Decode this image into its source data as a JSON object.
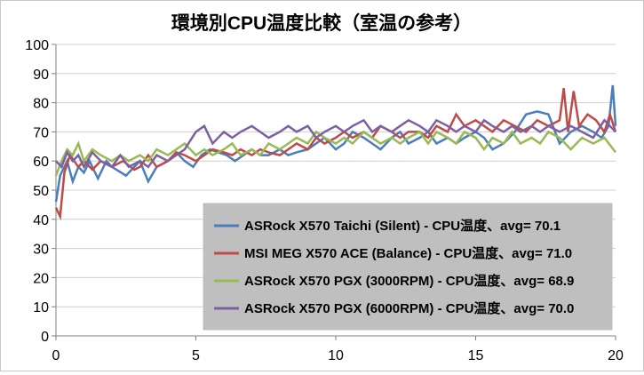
{
  "chart_data": {
    "type": "line",
    "title": "環境別CPU温度比較（室温の参考）",
    "xlabel": "",
    "ylabel": "",
    "xlim": [
      0,
      20
    ],
    "ylim": [
      0,
      100
    ],
    "x_ticks": [
      0,
      5,
      10,
      15,
      20
    ],
    "y_ticks": [
      0,
      10,
      20,
      30,
      40,
      50,
      60,
      70,
      80,
      90,
      100
    ],
    "grid": "horizontal",
    "legend_position": "bottom-right",
    "series": [
      {
        "name": "ASRock X570 Taichi (Silent) - CPU温度、avg= 70.1",
        "color": "#4a7ebb",
        "points": [
          [
            0,
            46
          ],
          [
            0.15,
            55
          ],
          [
            0.4,
            60
          ],
          [
            0.6,
            53
          ],
          [
            0.8,
            58
          ],
          [
            1.0,
            56
          ],
          [
            1.2,
            60
          ],
          [
            1.5,
            54
          ],
          [
            1.8,
            60
          ],
          [
            2.0,
            58
          ],
          [
            2.5,
            55
          ],
          [
            2.8,
            58
          ],
          [
            3.0,
            60
          ],
          [
            3.3,
            53
          ],
          [
            3.6,
            58
          ],
          [
            4.0,
            60
          ],
          [
            4.3,
            63
          ],
          [
            4.6,
            60
          ],
          [
            4.9,
            58
          ],
          [
            5.2,
            62
          ],
          [
            5.5,
            64
          ],
          [
            5.8,
            63
          ],
          [
            6.1,
            62
          ],
          [
            6.4,
            60
          ],
          [
            6.7,
            62
          ],
          [
            7.0,
            64
          ],
          [
            7.3,
            62
          ],
          [
            7.6,
            62
          ],
          [
            8.0,
            64
          ],
          [
            8.3,
            62
          ],
          [
            8.6,
            63
          ],
          [
            9.0,
            64
          ],
          [
            9.3,
            66
          ],
          [
            9.6,
            68
          ],
          [
            10.0,
            64
          ],
          [
            10.3,
            66
          ],
          [
            10.6,
            70
          ],
          [
            11.0,
            68
          ],
          [
            11.3,
            66
          ],
          [
            11.6,
            64
          ],
          [
            12.0,
            68
          ],
          [
            12.3,
            70
          ],
          [
            12.6,
            66
          ],
          [
            13.0,
            68
          ],
          [
            13.3,
            70
          ],
          [
            13.6,
            66
          ],
          [
            14.0,
            68
          ],
          [
            14.3,
            66
          ],
          [
            14.6,
            68
          ],
          [
            15.0,
            70
          ],
          [
            15.3,
            68
          ],
          [
            15.6,
            64
          ],
          [
            16.0,
            66
          ],
          [
            16.4,
            70
          ],
          [
            16.8,
            76
          ],
          [
            17.2,
            77
          ],
          [
            17.6,
            76
          ],
          [
            18.0,
            66
          ],
          [
            18.4,
            70
          ],
          [
            18.8,
            72
          ],
          [
            19.2,
            70
          ],
          [
            19.5,
            68
          ],
          [
            19.75,
            72
          ],
          [
            19.9,
            86
          ],
          [
            20.0,
            72
          ]
        ]
      },
      {
        "name": "MSI MEG X570 ACE (Balance) - CPU温度、avg= 71.0",
        "color": "#be4b48",
        "points": [
          [
            0,
            44
          ],
          [
            0.15,
            41
          ],
          [
            0.3,
            56
          ],
          [
            0.5,
            62
          ],
          [
            0.8,
            58
          ],
          [
            1.0,
            60
          ],
          [
            1.3,
            57
          ],
          [
            1.6,
            60
          ],
          [
            2.0,
            58
          ],
          [
            2.4,
            60
          ],
          [
            2.8,
            57
          ],
          [
            3.0,
            58
          ],
          [
            3.3,
            62
          ],
          [
            3.6,
            58
          ],
          [
            4.0,
            60
          ],
          [
            4.3,
            63
          ],
          [
            4.6,
            62
          ],
          [
            5.0,
            60
          ],
          [
            5.3,
            62
          ],
          [
            5.6,
            64
          ],
          [
            6.0,
            63
          ],
          [
            6.3,
            62
          ],
          [
            6.6,
            64
          ],
          [
            7.0,
            62
          ],
          [
            7.3,
            64
          ],
          [
            7.6,
            63
          ],
          [
            8.0,
            62
          ],
          [
            8.3,
            64
          ],
          [
            8.6,
            66
          ],
          [
            9.0,
            64
          ],
          [
            9.3,
            68
          ],
          [
            9.6,
            66
          ],
          [
            10.0,
            68
          ],
          [
            10.3,
            70
          ],
          [
            10.6,
            68
          ],
          [
            11.0,
            70
          ],
          [
            11.3,
            68
          ],
          [
            11.6,
            72
          ],
          [
            12.0,
            70
          ],
          [
            12.3,
            68
          ],
          [
            12.6,
            70
          ],
          [
            13.0,
            70
          ],
          [
            13.3,
            68
          ],
          [
            13.6,
            72
          ],
          [
            14.0,
            70
          ],
          [
            14.3,
            76
          ],
          [
            14.6,
            72
          ],
          [
            15.0,
            74
          ],
          [
            15.3,
            72
          ],
          [
            15.6,
            70
          ],
          [
            16.0,
            74
          ],
          [
            16.4,
            72
          ],
          [
            16.8,
            70
          ],
          [
            17.2,
            74
          ],
          [
            17.6,
            72
          ],
          [
            18.0,
            74
          ],
          [
            18.15,
            85
          ],
          [
            18.3,
            70
          ],
          [
            18.5,
            84
          ],
          [
            18.7,
            72
          ],
          [
            19.0,
            76
          ],
          [
            19.3,
            74
          ],
          [
            19.6,
            70
          ],
          [
            19.8,
            76
          ],
          [
            20.0,
            70
          ]
        ]
      },
      {
        "name": "ASRock X570 PGX (3000RPM) - CPU温度、avg= 68.9",
        "color": "#98b954",
        "points": [
          [
            0,
            55
          ],
          [
            0.2,
            60
          ],
          [
            0.4,
            64
          ],
          [
            0.6,
            62
          ],
          [
            0.8,
            66
          ],
          [
            1.0,
            60
          ],
          [
            1.3,
            64
          ],
          [
            1.6,
            62
          ],
          [
            2.0,
            60
          ],
          [
            2.3,
            62
          ],
          [
            2.6,
            60
          ],
          [
            3.0,
            62
          ],
          [
            3.3,
            60
          ],
          [
            3.6,
            64
          ],
          [
            4.0,
            62
          ],
          [
            4.3,
            64
          ],
          [
            4.6,
            66
          ],
          [
            5.0,
            62
          ],
          [
            5.3,
            64
          ],
          [
            5.6,
            62
          ],
          [
            6.0,
            64
          ],
          [
            6.3,
            66
          ],
          [
            6.6,
            62
          ],
          [
            7.0,
            64
          ],
          [
            7.3,
            62
          ],
          [
            7.6,
            66
          ],
          [
            8.0,
            64
          ],
          [
            8.3,
            66
          ],
          [
            8.6,
            68
          ],
          [
            9.0,
            66
          ],
          [
            9.3,
            70
          ],
          [
            9.6,
            68
          ],
          [
            10.0,
            66
          ],
          [
            10.3,
            68
          ],
          [
            10.6,
            66
          ],
          [
            11.0,
            70
          ],
          [
            11.3,
            68
          ],
          [
            11.6,
            66
          ],
          [
            12.0,
            68
          ],
          [
            12.3,
            66
          ],
          [
            12.6,
            68
          ],
          [
            13.0,
            70
          ],
          [
            13.3,
            66
          ],
          [
            13.6,
            70
          ],
          [
            14.0,
            68
          ],
          [
            14.3,
            66
          ],
          [
            14.6,
            70
          ],
          [
            15.0,
            68
          ],
          [
            15.3,
            64
          ],
          [
            15.6,
            68
          ],
          [
            16.0,
            66
          ],
          [
            16.3,
            70
          ],
          [
            16.6,
            66
          ],
          [
            17.0,
            68
          ],
          [
            17.3,
            66
          ],
          [
            17.6,
            70
          ],
          [
            18.0,
            68
          ],
          [
            18.4,
            64
          ],
          [
            18.8,
            68
          ],
          [
            19.2,
            66
          ],
          [
            19.6,
            68
          ],
          [
            20.0,
            63
          ]
        ]
      },
      {
        "name": "ASRock X570 PGX (6000RPM) - CPU温度、avg= 70.0",
        "color": "#7d60a0",
        "points": [
          [
            0,
            60
          ],
          [
            0.2,
            58
          ],
          [
            0.4,
            63
          ],
          [
            0.6,
            60
          ],
          [
            0.8,
            62
          ],
          [
            1.0,
            58
          ],
          [
            1.3,
            63
          ],
          [
            1.6,
            60
          ],
          [
            2.0,
            58
          ],
          [
            2.3,
            62
          ],
          [
            2.6,
            58
          ],
          [
            3.0,
            60
          ],
          [
            3.3,
            58
          ],
          [
            3.6,
            62
          ],
          [
            4.0,
            60
          ],
          [
            4.3,
            62
          ],
          [
            4.6,
            64
          ],
          [
            5.0,
            70
          ],
          [
            5.3,
            72
          ],
          [
            5.6,
            66
          ],
          [
            6.0,
            70
          ],
          [
            6.3,
            68
          ],
          [
            6.6,
            70
          ],
          [
            7.0,
            72
          ],
          [
            7.3,
            70
          ],
          [
            7.6,
            68
          ],
          [
            8.0,
            70
          ],
          [
            8.3,
            72
          ],
          [
            8.6,
            70
          ],
          [
            9.0,
            72
          ],
          [
            9.3,
            68
          ],
          [
            9.6,
            70
          ],
          [
            10.0,
            72
          ],
          [
            10.3,
            70
          ],
          [
            10.6,
            72
          ],
          [
            11.0,
            74
          ],
          [
            11.3,
            70
          ],
          [
            11.6,
            72
          ],
          [
            12.0,
            70
          ],
          [
            12.3,
            72
          ],
          [
            12.6,
            74
          ],
          [
            13.0,
            72
          ],
          [
            13.3,
            70
          ],
          [
            13.6,
            74
          ],
          [
            14.0,
            72
          ],
          [
            14.3,
            70
          ],
          [
            14.6,
            72
          ],
          [
            15.0,
            70
          ],
          [
            15.3,
            74
          ],
          [
            15.6,
            72
          ],
          [
            16.0,
            70
          ],
          [
            16.3,
            72
          ],
          [
            16.6,
            70
          ],
          [
            17.0,
            72
          ],
          [
            17.3,
            70
          ],
          [
            17.6,
            72
          ],
          [
            18.0,
            70
          ],
          [
            18.4,
            72
          ],
          [
            18.8,
            70
          ],
          [
            19.2,
            68
          ],
          [
            19.6,
            74
          ],
          [
            20.0,
            70
          ]
        ]
      }
    ]
  }
}
